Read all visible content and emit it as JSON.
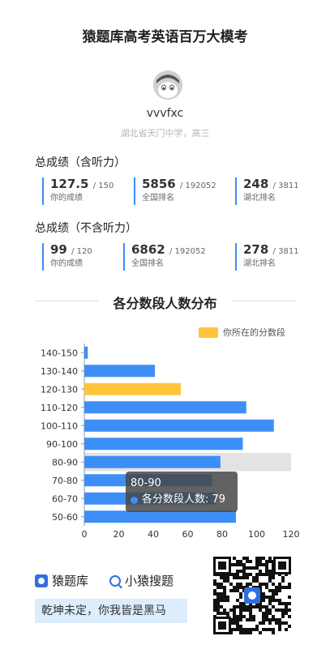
{
  "header": {
    "title": "猿题库高考英语百万大模考"
  },
  "user": {
    "name": "vvvfxc",
    "school": "湖北省天门中学，高三"
  },
  "with_listening": {
    "label": "总成绩（含听力）",
    "stats": [
      {
        "value": "127.5",
        "denom": "/ 150",
        "caption": "你的成绩"
      },
      {
        "value": "5856",
        "denom": "/ 192052",
        "caption": "全国排名"
      },
      {
        "value": "248",
        "denom": "/ 3811",
        "caption": "湖北排名"
      }
    ]
  },
  "without_listening": {
    "label": "总成绩（不含听力）",
    "stats": [
      {
        "value": "99",
        "denom": "/ 120",
        "caption": "你的成绩"
      },
      {
        "value": "6862",
        "denom": "/ 192052",
        "caption": "全国排名"
      },
      {
        "value": "278",
        "denom": "/ 3811",
        "caption": "湖北排名"
      }
    ]
  },
  "chart_data": {
    "type": "bar",
    "orientation": "horizontal",
    "title": "各分数段人数分布",
    "categories": [
      "140-150",
      "130-140",
      "120-130",
      "110-120",
      "100-110",
      "90-100",
      "80-90",
      "70-80",
      "60-70",
      "50-60"
    ],
    "series": [
      {
        "name": "各分数段人数",
        "values": [
          2,
          41,
          56,
          94,
          110,
          92,
          79,
          74,
          76,
          88
        ]
      }
    ],
    "highlight_category": "120-130",
    "hovered_category": "80-90",
    "legend_label": "你所在的分数段",
    "xlim": [
      0,
      120
    ],
    "xticks": [
      "0",
      "20",
      "40",
      "60",
      "80",
      "100",
      "120"
    ],
    "colors": {
      "bar": "#3e8ef7",
      "highlight": "#ffc53d",
      "hover_band": "#e3e3e3"
    }
  },
  "tooltip": {
    "title": "80-90",
    "series_label": "各分数段人数:",
    "value": "79"
  },
  "footer": {
    "brand1": "猿题库",
    "brand2": "小猿搜题",
    "motto": "乾坤未定，你我皆是黑马",
    "qr_icon": "qr-code-icon"
  }
}
